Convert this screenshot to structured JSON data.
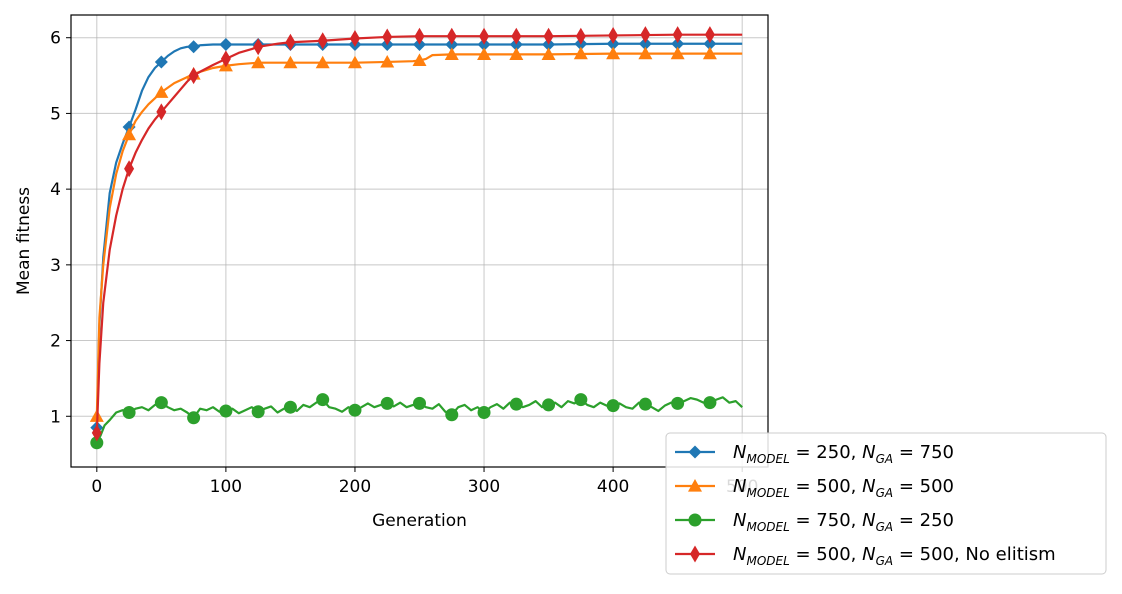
{
  "chart_data": {
    "type": "line",
    "title": "",
    "xlabel": "Generation",
    "ylabel": "Mean fitness",
    "xlim": [
      -20,
      520
    ],
    "ylim": [
      0.33,
      6.3
    ],
    "xticks": [
      0,
      100,
      200,
      300,
      400,
      500
    ],
    "yticks": [
      1,
      2,
      3,
      4,
      5,
      6
    ],
    "grid": true,
    "legend_position": "lower-right (extends outside axes)",
    "marker_x": [
      0,
      25,
      50,
      75,
      100,
      125,
      150,
      175,
      200,
      225,
      250,
      275,
      300,
      325,
      350,
      375,
      400,
      425,
      450,
      475
    ],
    "series": [
      {
        "name_parts": [
          "N",
          "MODEL",
          " = 250, ",
          "N",
          "GA",
          " = 750"
        ],
        "suffix": "",
        "color": "#1f77b4",
        "marker": "diamond",
        "curve": [
          [
            0,
            0.85
          ],
          [
            2,
            2.2
          ],
          [
            5,
            3.1
          ],
          [
            10,
            3.95
          ],
          [
            15,
            4.35
          ],
          [
            20,
            4.6
          ],
          [
            25,
            4.82
          ],
          [
            30,
            5.05
          ],
          [
            35,
            5.3
          ],
          [
            40,
            5.48
          ],
          [
            45,
            5.6
          ],
          [
            50,
            5.68
          ],
          [
            55,
            5.76
          ],
          [
            60,
            5.82
          ],
          [
            65,
            5.86
          ],
          [
            70,
            5.88
          ],
          [
            75,
            5.88
          ],
          [
            80,
            5.9
          ],
          [
            90,
            5.91
          ],
          [
            100,
            5.91
          ],
          [
            150,
            5.91
          ],
          [
            200,
            5.91
          ],
          [
            250,
            5.91
          ],
          [
            300,
            5.91
          ],
          [
            350,
            5.91
          ],
          [
            400,
            5.92
          ],
          [
            450,
            5.92
          ],
          [
            500,
            5.92
          ]
        ],
        "marker_values": [
          0.85,
          4.82,
          5.68,
          5.88,
          5.91,
          5.91,
          5.91,
          5.91,
          5.91,
          5.91,
          5.91,
          5.91,
          5.91,
          5.91,
          5.91,
          5.92,
          5.92,
          5.92,
          5.92,
          5.92
        ]
      },
      {
        "name_parts": [
          "N",
          "MODEL",
          " = 500, ",
          "N",
          "GA",
          " = 500"
        ],
        "suffix": "",
        "color": "#ff7f0e",
        "marker": "triangle",
        "curve": [
          [
            0,
            1.0
          ],
          [
            2,
            2.3
          ],
          [
            5,
            3.0
          ],
          [
            10,
            3.75
          ],
          [
            15,
            4.2
          ],
          [
            20,
            4.5
          ],
          [
            25,
            4.72
          ],
          [
            30,
            4.9
          ],
          [
            35,
            5.02
          ],
          [
            40,
            5.12
          ],
          [
            45,
            5.2
          ],
          [
            50,
            5.28
          ],
          [
            60,
            5.4
          ],
          [
            70,
            5.48
          ],
          [
            75,
            5.52
          ],
          [
            80,
            5.55
          ],
          [
            90,
            5.6
          ],
          [
            100,
            5.63
          ],
          [
            110,
            5.65
          ],
          [
            125,
            5.67
          ],
          [
            150,
            5.67
          ],
          [
            175,
            5.67
          ],
          [
            200,
            5.67
          ],
          [
            225,
            5.68
          ],
          [
            245,
            5.69
          ],
          [
            250,
            5.7
          ],
          [
            255,
            5.72
          ],
          [
            260,
            5.77
          ],
          [
            275,
            5.78
          ],
          [
            300,
            5.78
          ],
          [
            350,
            5.78
          ],
          [
            400,
            5.79
          ],
          [
            450,
            5.79
          ],
          [
            500,
            5.79
          ]
        ],
        "marker_values": [
          1.0,
          4.72,
          5.28,
          5.52,
          5.63,
          5.67,
          5.67,
          5.67,
          5.67,
          5.68,
          5.7,
          5.78,
          5.78,
          5.78,
          5.78,
          5.79,
          5.79,
          5.79,
          5.79,
          5.79
        ]
      },
      {
        "name_parts": [
          "N",
          "MODEL",
          " = 750, ",
          "N",
          "GA",
          " = 250"
        ],
        "suffix": "",
        "color": "#2ca02c",
        "marker": "circle",
        "curve": [
          [
            0,
            0.65
          ],
          [
            3,
            0.75
          ],
          [
            6,
            0.88
          ],
          [
            10,
            0.95
          ],
          [
            15,
            1.05
          ],
          [
            20,
            1.08
          ],
          [
            25,
            1.05
          ],
          [
            30,
            1.1
          ],
          [
            35,
            1.12
          ],
          [
            40,
            1.08
          ],
          [
            45,
            1.15
          ],
          [
            50,
            1.18
          ],
          [
            55,
            1.12
          ],
          [
            60,
            1.08
          ],
          [
            65,
            1.1
          ],
          [
            70,
            1.05
          ],
          [
            75,
            0.98
          ],
          [
            80,
            1.1
          ],
          [
            85,
            1.08
          ],
          [
            90,
            1.12
          ],
          [
            95,
            1.06
          ],
          [
            100,
            1.07
          ],
          [
            105,
            1.1
          ],
          [
            110,
            1.04
          ],
          [
            115,
            1.08
          ],
          [
            120,
            1.12
          ],
          [
            125,
            1.06
          ],
          [
            130,
            1.1
          ],
          [
            135,
            1.13
          ],
          [
            140,
            1.05
          ],
          [
            145,
            1.1
          ],
          [
            150,
            1.12
          ],
          [
            155,
            1.07
          ],
          [
            160,
            1.15
          ],
          [
            165,
            1.12
          ],
          [
            170,
            1.18
          ],
          [
            175,
            1.22
          ],
          [
            180,
            1.12
          ],
          [
            185,
            1.1
          ],
          [
            190,
            1.06
          ],
          [
            195,
            1.12
          ],
          [
            200,
            1.08
          ],
          [
            205,
            1.12
          ],
          [
            210,
            1.17
          ],
          [
            215,
            1.12
          ],
          [
            220,
            1.15
          ],
          [
            225,
            1.17
          ],
          [
            230,
            1.13
          ],
          [
            235,
            1.18
          ],
          [
            240,
            1.12
          ],
          [
            245,
            1.15
          ],
          [
            250,
            1.17
          ],
          [
            255,
            1.12
          ],
          [
            260,
            1.1
          ],
          [
            265,
            1.16
          ],
          [
            270,
            1.06
          ],
          [
            275,
            1.02
          ],
          [
            280,
            1.12
          ],
          [
            285,
            1.15
          ],
          [
            290,
            1.08
          ],
          [
            295,
            1.12
          ],
          [
            300,
            1.05
          ],
          [
            305,
            1.12
          ],
          [
            310,
            1.16
          ],
          [
            315,
            1.1
          ],
          [
            320,
            1.18
          ],
          [
            325,
            1.16
          ],
          [
            330,
            1.12
          ],
          [
            335,
            1.15
          ],
          [
            340,
            1.2
          ],
          [
            345,
            1.12
          ],
          [
            350,
            1.15
          ],
          [
            355,
            1.18
          ],
          [
            360,
            1.12
          ],
          [
            365,
            1.2
          ],
          [
            370,
            1.17
          ],
          [
            375,
            1.22
          ],
          [
            380,
            1.15
          ],
          [
            385,
            1.12
          ],
          [
            390,
            1.18
          ],
          [
            395,
            1.14
          ],
          [
            400,
            1.14
          ],
          [
            405,
            1.17
          ],
          [
            410,
            1.12
          ],
          [
            415,
            1.1
          ],
          [
            420,
            1.18
          ],
          [
            425,
            1.16
          ],
          [
            430,
            1.12
          ],
          [
            435,
            1.07
          ],
          [
            440,
            1.14
          ],
          [
            445,
            1.18
          ],
          [
            450,
            1.17
          ],
          [
            455,
            1.2
          ],
          [
            460,
            1.24
          ],
          [
            465,
            1.22
          ],
          [
            470,
            1.18
          ],
          [
            475,
            1.18
          ],
          [
            480,
            1.22
          ],
          [
            485,
            1.25
          ],
          [
            490,
            1.18
          ],
          [
            495,
            1.2
          ],
          [
            500,
            1.12
          ]
        ],
        "marker_values": [
          0.65,
          1.05,
          1.18,
          0.98,
          1.07,
          1.06,
          1.12,
          1.22,
          1.08,
          1.17,
          1.17,
          1.02,
          1.05,
          1.16,
          1.15,
          1.22,
          1.14,
          1.16,
          1.17,
          1.18
        ]
      },
      {
        "name_parts": [
          "N",
          "MODEL",
          " = 500, ",
          "N",
          "GA",
          " = 500"
        ],
        "suffix": ", No elitism",
        "color": "#d62728",
        "marker": "thin-diamond",
        "curve": [
          [
            0,
            0.78
          ],
          [
            2,
            1.7
          ],
          [
            5,
            2.5
          ],
          [
            10,
            3.2
          ],
          [
            15,
            3.65
          ],
          [
            20,
            4.0
          ],
          [
            25,
            4.27
          ],
          [
            30,
            4.48
          ],
          [
            35,
            4.65
          ],
          [
            40,
            4.8
          ],
          [
            45,
            4.92
          ],
          [
            50,
            5.02
          ],
          [
            55,
            5.12
          ],
          [
            60,
            5.22
          ],
          [
            65,
            5.32
          ],
          [
            70,
            5.42
          ],
          [
            75,
            5.5
          ],
          [
            80,
            5.55
          ],
          [
            90,
            5.64
          ],
          [
            100,
            5.72
          ],
          [
            110,
            5.8
          ],
          [
            120,
            5.85
          ],
          [
            125,
            5.88
          ],
          [
            140,
            5.92
          ],
          [
            150,
            5.94
          ],
          [
            175,
            5.96
          ],
          [
            200,
            5.99
          ],
          [
            225,
            6.01
          ],
          [
            250,
            6.02
          ],
          [
            300,
            6.02
          ],
          [
            350,
            6.02
          ],
          [
            400,
            6.03
          ],
          [
            450,
            6.04
          ],
          [
            500,
            6.04
          ]
        ],
        "marker_values": [
          0.78,
          4.27,
          5.02,
          5.5,
          5.72,
          5.88,
          5.94,
          5.96,
          5.99,
          6.01,
          6.02,
          6.02,
          6.02,
          6.02,
          6.02,
          6.02,
          6.03,
          6.04,
          6.04,
          6.04
        ]
      }
    ]
  }
}
